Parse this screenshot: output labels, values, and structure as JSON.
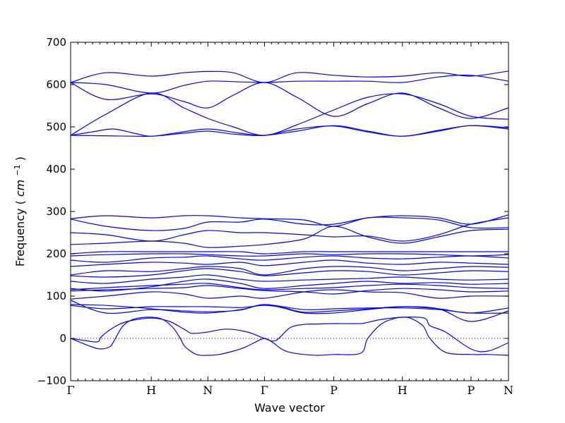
{
  "chart_data": {
    "type": "line",
    "title": "",
    "xlabel": "Wave vector",
    "ylabel": "Frequency",
    "ylabel_unit_base": "cm",
    "ylabel_unit_exp": "−1",
    "ylim": [
      -100,
      700
    ],
    "xlim": [
      0,
      6.19
    ],
    "y_ticks": [
      -100,
      0,
      100,
      200,
      300,
      400,
      500,
      600,
      700
    ],
    "kpoints": [
      {
        "label": "Γ",
        "x": 0
      },
      {
        "label": "H",
        "x": 1.14
      },
      {
        "label": "N",
        "x": 1.94
      },
      {
        "label": "Γ",
        "x": 2.74
      },
      {
        "label": "P",
        "x": 3.72
      },
      {
        "label": "H",
        "x": 4.69
      },
      {
        "label": "P",
        "x": 5.66
      },
      {
        "label": "N",
        "x": 6.19
      }
    ],
    "reference_line": {
      "y": 0,
      "style": "dotted"
    },
    "grid": false,
    "legend": "none",
    "series_color": "#0000ff",
    "series": [
      {
        "x": [
          0,
          0.3,
          0.43,
          0.55,
          0.6,
          0.72,
          0.82,
          0.95,
          1.14,
          1.3,
          1.45,
          1.55,
          1.62,
          1.78,
          1.94,
          2.1,
          2.3,
          2.45,
          2.6,
          2.74,
          2.86,
          2.98,
          3.1,
          3.3,
          3.5,
          3.72,
          4.1,
          4.2,
          4.4,
          4.6,
          4.69,
          4.8,
          4.98,
          5.08,
          5.3,
          5.66,
          5.9,
          6.19
        ],
        "y": [
          0,
          -20,
          -25,
          -20,
          -10,
          25,
          40,
          48,
          50,
          45,
          25,
          0,
          -20,
          -38,
          -40,
          -38,
          -30,
          -22,
          -10,
          0,
          -10,
          -25,
          -33,
          -38,
          -40,
          -38,
          -35,
          0,
          35,
          48,
          50,
          48,
          30,
          0,
          -33,
          -38,
          -38,
          -40
        ]
      },
      {
        "x": [
          0,
          0.2,
          0.38,
          0.44,
          0.6,
          0.8,
          1.14,
          1.4,
          1.62,
          1.72,
          1.94,
          2.2,
          2.5,
          2.74,
          2.9,
          3.1,
          3.3,
          3.5,
          3.72,
          4.1,
          4.2,
          4.4,
          4.69,
          5.0,
          5.08,
          5.3,
          5.66,
          5.9,
          6.19
        ],
        "y": [
          0,
          -5,
          -8,
          5,
          25,
          40,
          48,
          40,
          20,
          12,
          15,
          22,
          15,
          0,
          -5,
          25,
          33,
          34,
          35,
          35,
          38,
          45,
          50,
          48,
          30,
          15,
          -25,
          -30,
          -10
        ]
      },
      {
        "x": [
          0,
          0.5,
          1.14,
          1.6,
          1.94,
          2.4,
          2.74,
          3.0,
          3.3,
          3.72,
          4.2,
          4.69,
          5.2,
          5.66,
          6.19
        ],
        "y": [
          78,
          70,
          75,
          75,
          75,
          73,
          78,
          73,
          62,
          65,
          70,
          75,
          70,
          40,
          65
        ]
      },
      {
        "x": [
          0,
          0.5,
          1.14,
          1.6,
          1.94,
          2.4,
          2.74,
          3.0,
          3.3,
          3.72,
          4.2,
          4.69,
          5.2,
          5.66,
          6.19
        ],
        "y": [
          80,
          78,
          70,
          62,
          60,
          68,
          80,
          72,
          60,
          60,
          68,
          75,
          70,
          60,
          72
        ]
      },
      {
        "x": [
          0,
          0.5,
          1.14,
          1.6,
          1.94,
          2.4,
          2.74,
          3.3,
          3.72,
          4.2,
          4.69,
          5.2,
          5.66,
          6.19
        ],
        "y": [
          90,
          60,
          68,
          65,
          63,
          67,
          80,
          68,
          70,
          72,
          72,
          68,
          60,
          60
        ]
      },
      {
        "x": [
          0,
          0.5,
          1.14,
          1.6,
          1.94,
          2.4,
          2.74,
          3.3,
          3.72,
          4.2,
          4.69,
          5.2,
          5.66,
          6.19
        ],
        "y": [
          93,
          100,
          110,
          105,
          95,
          100,
          95,
          110,
          115,
          110,
          108,
          95,
          100,
          100
        ]
      },
      {
        "x": [
          0,
          0.5,
          1.14,
          1.6,
          1.94,
          2.4,
          2.74,
          3.3,
          3.72,
          4.2,
          4.69,
          5.2,
          5.66,
          6.19
        ],
        "y": [
          112,
          115,
          118,
          120,
          125,
          118,
          113,
          110,
          105,
          113,
          118,
          115,
          110,
          112
        ]
      },
      {
        "x": [
          0,
          0.5,
          1.14,
          1.6,
          1.94,
          2.4,
          2.74,
          3.3,
          3.72,
          4.2,
          4.69,
          5.2,
          5.66,
          6.19
        ],
        "y": [
          115,
          120,
          125,
          128,
          130,
          120,
          115,
          118,
          120,
          125,
          128,
          125,
          120,
          118
        ]
      },
      {
        "x": [
          0,
          0.5,
          1.14,
          1.6,
          1.94,
          2.4,
          2.74,
          3.3,
          3.72,
          4.2,
          4.69,
          5.2,
          5.66,
          6.19
        ],
        "y": [
          118,
          112,
          122,
          135,
          140,
          130,
          118,
          125,
          130,
          135,
          130,
          132,
          128,
          130
        ]
      },
      {
        "x": [
          0,
          0.5,
          1.14,
          1.6,
          1.94,
          2.4,
          2.74,
          3.3,
          3.72,
          4.2,
          4.69,
          5.2,
          5.66,
          6.19
        ],
        "y": [
          135,
          130,
          140,
          145,
          150,
          140,
          135,
          138,
          140,
          142,
          145,
          140,
          138,
          140
        ]
      },
      {
        "x": [
          0,
          0.5,
          1.14,
          1.6,
          1.94,
          2.4,
          2.74,
          3.3,
          3.72,
          4.2,
          4.69,
          5.2,
          5.66,
          6.19
        ],
        "y": [
          148,
          145,
          150,
          160,
          165,
          158,
          148,
          155,
          160,
          158,
          150,
          155,
          160,
          158
        ]
      },
      {
        "x": [
          0,
          0.5,
          1.14,
          1.6,
          1.94,
          2.4,
          2.74,
          3.3,
          3.72,
          4.2,
          4.69,
          5.2,
          5.66,
          6.19
        ],
        "y": [
          150,
          160,
          158,
          165,
          170,
          165,
          150,
          165,
          170,
          168,
          160,
          165,
          170,
          168
        ]
      },
      {
        "x": [
          0,
          0.5,
          1.14,
          1.6,
          1.94,
          2.4,
          2.74,
          3.3,
          3.72,
          4.2,
          4.69,
          5.2,
          5.66,
          6.19
        ],
        "y": [
          170,
          175,
          180,
          178,
          175,
          180,
          172,
          180,
          185,
          178,
          175,
          180,
          178,
          175
        ]
      },
      {
        "x": [
          0,
          0.5,
          1.14,
          1.6,
          1.94,
          2.4,
          2.74,
          3.3,
          3.72,
          4.2,
          4.69,
          5.2,
          5.66,
          6.19
        ],
        "y": [
          185,
          180,
          190,
          192,
          195,
          188,
          185,
          192,
          195,
          190,
          188,
          192,
          195,
          190
        ]
      },
      {
        "x": [
          0,
          0.5,
          1.14,
          1.6,
          1.94,
          2.4,
          2.74,
          3.3,
          3.72,
          4.2,
          4.69,
          5.2,
          5.66,
          6.19
        ],
        "y": [
          195,
          198,
          200,
          200,
          198,
          195,
          195,
          200,
          198,
          200,
          200,
          198,
          195,
          198
        ]
      },
      {
        "x": [
          0,
          0.5,
          1.14,
          1.6,
          1.94,
          2.4,
          2.74,
          3.3,
          3.72,
          4.2,
          4.69,
          5.2,
          5.66,
          6.19
        ],
        "y": [
          200,
          205,
          205,
          205,
          205,
          205,
          200,
          205,
          205,
          205,
          205,
          205,
          205,
          205
        ]
      },
      {
        "x": [
          0,
          0.5,
          1.14,
          1.6,
          1.94,
          2.4,
          2.74,
          3.3,
          3.72,
          4.2,
          4.69,
          5.2,
          5.66,
          6.19
        ],
        "y": [
          222,
          225,
          230,
          225,
          215,
          218,
          222,
          235,
          265,
          240,
          225,
          240,
          255,
          258
        ]
      },
      {
        "x": [
          0,
          0.5,
          1.14,
          1.6,
          1.94,
          2.4,
          2.74,
          3.3,
          3.72,
          4.2,
          4.69,
          5.2,
          5.66,
          6.19
        ],
        "y": [
          250,
          245,
          230,
          245,
          255,
          250,
          250,
          245,
          240,
          242,
          230,
          245,
          270,
          285
        ]
      },
      {
        "x": [
          0,
          0.5,
          1.14,
          1.6,
          1.94,
          2.4,
          2.74,
          3.3,
          3.72,
          4.2,
          4.69,
          5.2,
          5.66,
          6.19
        ],
        "y": [
          282,
          265,
          255,
          260,
          275,
          275,
          282,
          270,
          270,
          285,
          290,
          285,
          270,
          292
        ]
      },
      {
        "x": [
          0,
          0.5,
          1.14,
          1.6,
          1.94,
          2.4,
          2.74,
          3.3,
          3.72,
          4.2,
          4.69,
          5.2,
          5.66,
          6.19
        ],
        "y": [
          283,
          290,
          285,
          290,
          290,
          285,
          283,
          280,
          265,
          285,
          285,
          280,
          262,
          262
        ]
      },
      {
        "x": [
          0,
          0.3,
          0.6,
          0.9,
          1.14,
          1.5,
          1.94,
          2.4,
          2.74,
          3.2,
          3.72,
          4.2,
          4.69,
          5.2,
          5.66,
          6.19
        ],
        "y": [
          480,
          488,
          495,
          485,
          478,
          486,
          495,
          485,
          480,
          490,
          503,
          490,
          478,
          492,
          503,
          498
        ]
      },
      {
        "x": [
          0,
          0.5,
          1.14,
          1.6,
          1.94,
          2.3,
          2.74,
          3.2,
          3.72,
          4.2,
          4.69,
          5.2,
          5.66,
          6.19
        ],
        "y": [
          480,
          479,
          478,
          485,
          490,
          483,
          480,
          495,
          502,
          488,
          478,
          490,
          503,
          495
        ]
      },
      {
        "x": [
          0,
          0.5,
          1.14,
          1.6,
          1.94,
          2.3,
          2.74,
          3.2,
          3.72,
          4.2,
          4.69,
          5.2,
          5.66,
          6.19
        ],
        "y": [
          480,
          530,
          580,
          545,
          520,
          500,
          480,
          505,
          540,
          570,
          578,
          555,
          525,
          518
        ]
      },
      {
        "x": [
          0,
          0.5,
          1.14,
          1.6,
          1.94,
          2.3,
          2.74,
          3.2,
          3.72,
          4.2,
          4.69,
          5.2,
          5.66,
          6.19
        ],
        "y": [
          605,
          565,
          578,
          560,
          545,
          575,
          605,
          570,
          525,
          555,
          580,
          545,
          520,
          545
        ]
      },
      {
        "x": [
          0,
          0.5,
          1.14,
          1.6,
          1.94,
          2.3,
          2.74,
          3.2,
          3.72,
          4.2,
          4.69,
          5.2,
          5.66,
          6.19
        ],
        "y": [
          605,
          600,
          580,
          598,
          608,
          607,
          605,
          608,
          608,
          608,
          605,
          618,
          622,
          608
        ]
      },
      {
        "x": [
          0,
          0.5,
          1.14,
          1.6,
          1.94,
          2.3,
          2.74,
          3.2,
          3.72,
          4.2,
          4.69,
          5.2,
          5.66,
          6.19
        ],
        "y": [
          605,
          628,
          620,
          628,
          631,
          628,
          605,
          628,
          622,
          618,
          620,
          628,
          620,
          632
        ]
      }
    ]
  }
}
